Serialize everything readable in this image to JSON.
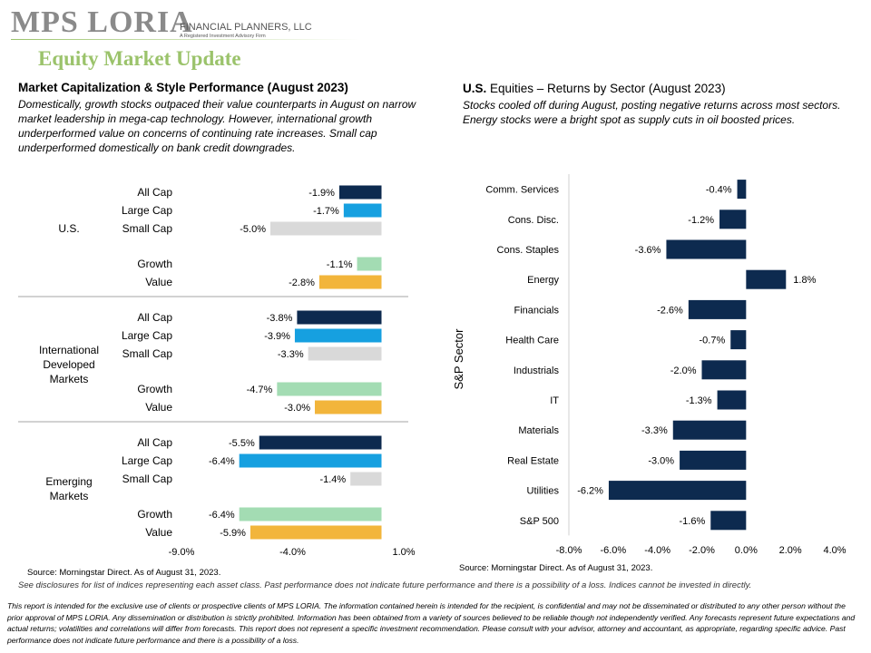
{
  "logo": {
    "name": "MPS LORIA",
    "tagline": "FINANCIAL PLANNERS, LLC",
    "sub": "A Registered Investment Advisory Firm"
  },
  "page_title": "Equity Market Update",
  "left": {
    "title": "Market Capitalization & Style Performance (August 2023)",
    "description": "Domestically, growth stocks outpaced their value counterparts in August on narrow market leadership in mega-cap technology. However, international growth underperformed value on concerns of continuing rate increases. Small cap underperformed domestically on bank credit downgrades.",
    "source": "Source: Morningstar Direct. As of August 31, 2023."
  },
  "right": {
    "title_bold": "U.S.",
    "title_rest": " Equities – Returns by Sector (August 2023)",
    "description": "Stocks cooled off during August, posting negative returns across most sectors. Energy stocks were a bright spot as supply cuts in oil boosted prices.",
    "source": "Source: Morningstar Direct. As of August 31, 2023."
  },
  "colors": {
    "all_cap": "#0d2a4f",
    "large_cap": "#16a0e0",
    "small_cap": "#d9d9d9",
    "growth": "#a3dcb3",
    "value": "#f2b53b",
    "sector": "#0d2a4f",
    "title_green": "#9bc36b"
  },
  "chart_data": [
    {
      "type": "bar",
      "orientation": "horizontal",
      "title": "",
      "xlim": [
        -9,
        1
      ],
      "xticks": [
        "-9.0%",
        "-4.0%",
        "1.0%"
      ],
      "groups": [
        {
          "label": "U.S.",
          "rows": [
            {
              "name": "All Cap",
              "value": -1.9,
              "label": "-1.9%",
              "color": "all_cap"
            },
            {
              "name": "Large Cap",
              "value": -1.7,
              "label": "-1.7%",
              "color": "large_cap"
            },
            {
              "name": "Small Cap",
              "value": -5.0,
              "label": "-5.0%",
              "color": "small_cap"
            },
            {
              "name": "Growth",
              "value": -1.1,
              "label": "-1.1%",
              "color": "growth"
            },
            {
              "name": "Value",
              "value": -2.8,
              "label": "-2.8%",
              "color": "value"
            }
          ]
        },
        {
          "label": "International Developed Markets",
          "rows": [
            {
              "name": "All Cap",
              "value": -3.8,
              "label": "-3.8%",
              "color": "all_cap"
            },
            {
              "name": "Large Cap",
              "value": -3.9,
              "label": "-3.9%",
              "color": "large_cap"
            },
            {
              "name": "Small Cap",
              "value": -3.3,
              "label": "-3.3%",
              "color": "small_cap"
            },
            {
              "name": "Growth",
              "value": -4.7,
              "label": "-4.7%",
              "color": "growth"
            },
            {
              "name": "Value",
              "value": -3.0,
              "label": "-3.0%",
              "color": "value"
            }
          ]
        },
        {
          "label": "Emerging Markets",
          "rows": [
            {
              "name": "All Cap",
              "value": -5.5,
              "label": "-5.5%",
              "color": "all_cap"
            },
            {
              "name": "Large Cap",
              "value": -6.4,
              "label": "-6.4%",
              "color": "large_cap"
            },
            {
              "name": "Small Cap",
              "value": -1.4,
              "label": "-1.4%",
              "color": "small_cap"
            },
            {
              "name": "Growth",
              "value": -6.4,
              "label": "-6.4%",
              "color": "growth"
            },
            {
              "name": "Value",
              "value": -5.9,
              "label": "-5.9%",
              "color": "value"
            }
          ]
        }
      ]
    },
    {
      "type": "bar",
      "orientation": "horizontal",
      "title": "",
      "ylabel": "S&P Sector",
      "xlim": [
        -8,
        4
      ],
      "xticks": [
        "-8.0%",
        "-6.0%",
        "-4.0%",
        "-2.0%",
        "0.0%",
        "2.0%",
        "4.0%"
      ],
      "categories": [
        "Comm. Services",
        "Cons. Disc.",
        "Cons. Staples",
        "Energy",
        "Financials",
        "Health Care",
        "Industrials",
        "IT",
        "Materials",
        "Real Estate",
        "Utilities",
        "S&P 500"
      ],
      "values": [
        -0.4,
        -1.2,
        -3.6,
        1.8,
        -2.6,
        -0.7,
        -2.0,
        -1.3,
        -3.3,
        -3.0,
        -6.2,
        -1.6
      ],
      "labels": [
        "-0.4%",
        "-1.2%",
        "-3.6%",
        "1.8%",
        "-2.6%",
        "-0.7%",
        "-2.0%",
        "-1.3%",
        "-3.3%",
        "-3.0%",
        "-6.2%",
        "-1.6%"
      ]
    }
  ],
  "disclosure_note": "See disclosures for list of indices representing each asset class. Past performance does not indicate future performance and there is a possibility of a loss. Indices cannot be invested in directly.",
  "disclaimer": "This report is intended for the exclusive use of clients or prospective clients of MPS LORIA. The information contained herein is intended for the recipient, is confidential and may not be disseminated or distributed to any other person without the prior approval of MPS LORIA. Any dissemination or distribution is strictly prohibited. Information has been obtained from a variety of sources believed to be reliable though not independently verified. Any forecasts represent future expectations and actual returns; volatilities and correlations will differ from forecasts. This report does not represent a specific investment recommendation. Please consult with your advisor, attorney and accountant, as appropriate, regarding specific advice. Past performance does not indicate future performance and there is a possibility of a loss."
}
